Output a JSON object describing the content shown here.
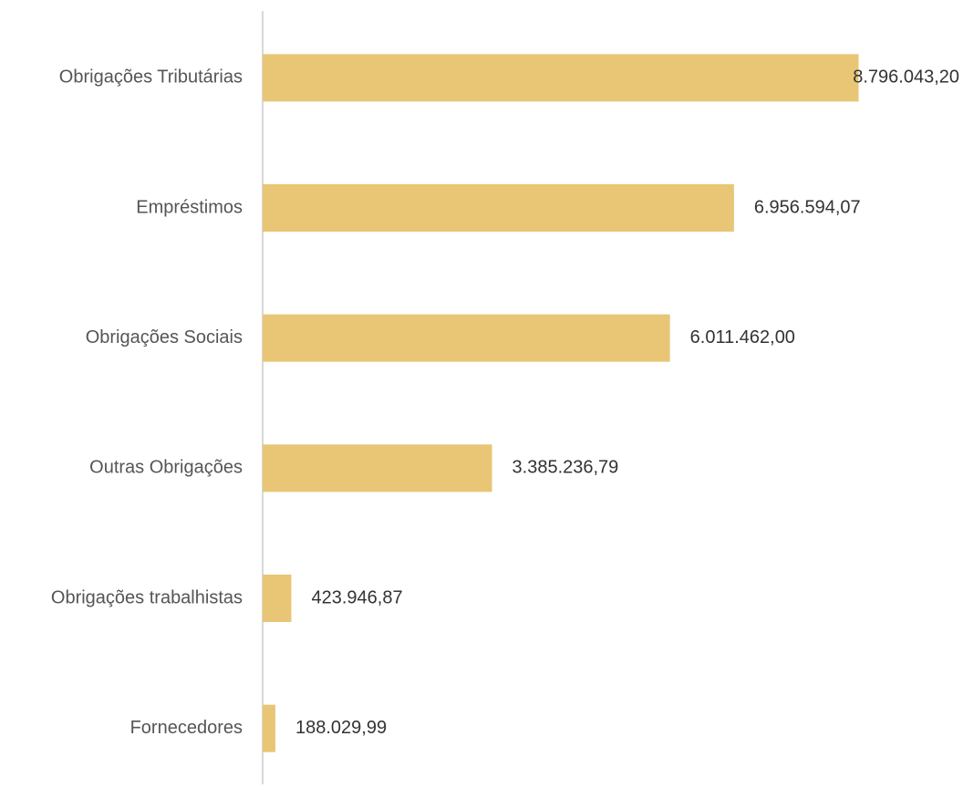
{
  "chart_data": {
    "type": "hbar",
    "categories": [
      "Obrigações Tributárias",
      "Empréstimos",
      "Obrigações Sociais",
      "Outras Obrigações",
      "Obrigações trabalhistas",
      "Fornecedores"
    ],
    "values": [
      8796043.2,
      6956594.07,
      6011462.0,
      3385236.79,
      423946.87,
      188029.99
    ],
    "value_labels": [
      "8.796.043,20",
      "6.956.594,07",
      "6.011.462,00",
      "3.385.236,79",
      "423.946,87",
      "188.029,99"
    ],
    "color": "#e8c675",
    "xlim": [
      0,
      10000000
    ]
  }
}
